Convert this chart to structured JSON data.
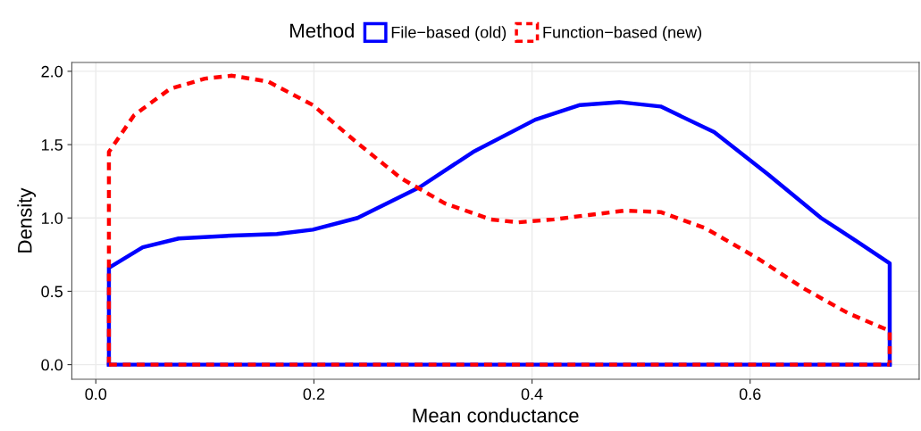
{
  "chart_data": {
    "type": "line",
    "xlabel": "Mean conductance",
    "ylabel": "Density",
    "legend_title": "Method",
    "legend": "top",
    "grid": true,
    "xlim": [
      -0.022,
      0.755
    ],
    "ylim": [
      -0.1,
      2.06
    ],
    "xticks": [
      {
        "value": 0,
        "label": "0.0"
      },
      0.2,
      0.4,
      0.6
    ],
    "yticks": [
      {
        "value": 0,
        "label": "0.0"
      },
      0.5,
      {
        "value": 1,
        "label": "1.0"
      },
      1.5,
      {
        "value": 2,
        "label": "2.0"
      }
    ],
    "series": [
      {
        "name": "File−based (old)",
        "color": "#0000ff",
        "line_style": "solid",
        "x": [
          0.012,
          0.012,
          0.043,
          0.076,
          0.125,
          0.166,
          0.199,
          0.24,
          0.297,
          0.346,
          0.403,
          0.444,
          0.48,
          0.518,
          0.567,
          0.616,
          0.665,
          0.698,
          0.728,
          0.728
        ],
        "values": [
          0,
          0.66,
          0.8,
          0.86,
          0.88,
          0.89,
          0.92,
          1.0,
          1.21,
          1.45,
          1.67,
          1.77,
          1.79,
          1.76,
          1.585,
          1.3,
          1.0,
          0.84,
          0.69,
          0
        ]
      },
      {
        "name": "Function−based (new)",
        "color": "#ff0000",
        "line_style": "dashed",
        "x": [
          0.012,
          0.012,
          0.035,
          0.068,
          0.1,
          0.125,
          0.158,
          0.199,
          0.24,
          0.28,
          0.32,
          0.362,
          0.387,
          0.42,
          0.452,
          0.485,
          0.518,
          0.559,
          0.608,
          0.649,
          0.69,
          0.728,
          0.728
        ],
        "values": [
          0,
          1.45,
          1.7,
          1.88,
          1.95,
          1.97,
          1.93,
          1.77,
          1.51,
          1.27,
          1.1,
          0.99,
          0.97,
          0.99,
          1.02,
          1.05,
          1.04,
          0.93,
          0.72,
          0.52,
          0.35,
          0.23,
          0
        ]
      },
      {
        "color": "#0000ff",
        "line_style": "solid",
        "x": [
          0.012,
          0.728
        ],
        "values": [
          0,
          0
        ]
      },
      {
        "color": "#ff0000",
        "line_style": "dashed",
        "x": [
          0.012,
          0.728
        ],
        "values": [
          0,
          0
        ]
      }
    ]
  }
}
